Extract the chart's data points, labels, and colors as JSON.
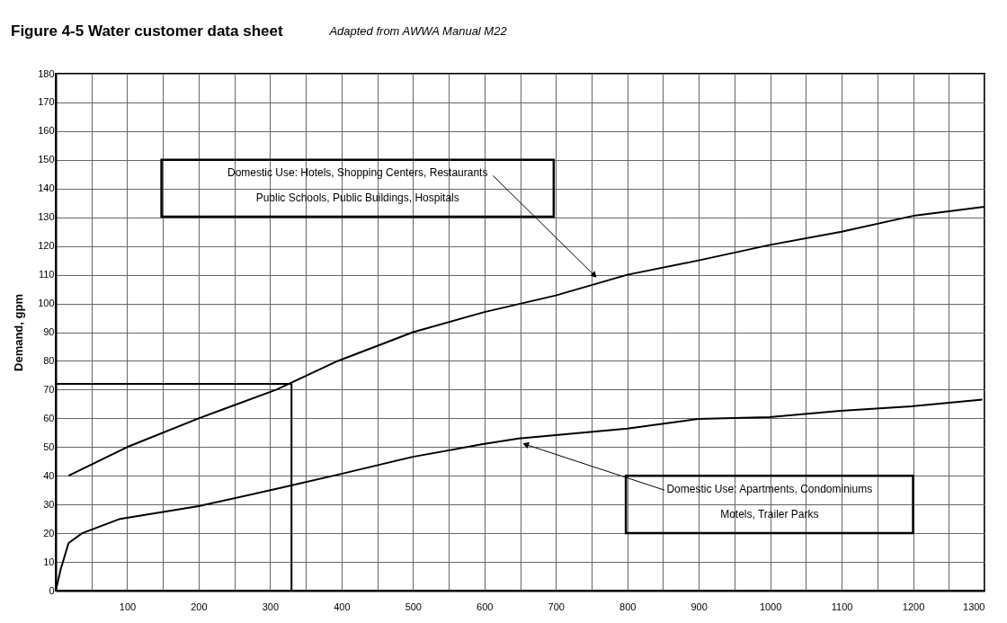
{
  "chart_data": {
    "type": "line",
    "title": "Figure 4-5  Water customer data sheet",
    "subtitle": "Adapted from AWWA Manual M22",
    "ylabel": "Demand, gpm",
    "series": [
      {
        "color": "#000000",
        "x": [
          18,
          100,
          200,
          309,
          395,
          500,
          600,
          700,
          800,
          900,
          1000,
          1100,
          1200,
          1300
        ],
        "values": [
          40,
          50,
          60,
          70,
          80,
          90,
          97,
          102.8,
          110,
          115,
          120.4,
          125,
          130.5,
          133.7
        ]
      },
      {
        "color": "#000000",
        "x": [
          0,
          7,
          18,
          37,
          90,
          200,
          313,
          397,
          500,
          598,
          648,
          800,
          899,
          999,
          1098,
          1198,
          1297
        ],
        "values": [
          0,
          7.5,
          16.6,
          20,
          25,
          29.4,
          35.7,
          40.5,
          46.6,
          51,
          53,
          56.4,
          59.8,
          60.4,
          62.6,
          64.2,
          66.5
        ]
      },
      {
        "color": "#000000",
        "x": [
          0,
          330,
          330
        ],
        "values": [
          72,
          72,
          0
        ]
      }
    ],
    "annotations": [
      {
        "text": "Domestic Use: Hotels, Shopping Centers, Restaurants\nPublic Schools, Public Buildings, Hospitals",
        "x": 753,
        "y": 110
      },
      {
        "text": "Domestic Use: Apartments, Condominiums\nMotels, Trailer Parks",
        "x": 659,
        "y": 50.8
      }
    ],
    "xlim": [
      0,
      1300
    ],
    "ylim": [
      0,
      180
    ],
    "xticks": [
      {
        "value": 50,
        "label": null
      },
      100,
      {
        "value": 150,
        "label": null
      },
      200,
      {
        "value": 250,
        "label": null
      },
      300,
      {
        "value": 350,
        "label": null
      },
      400,
      {
        "value": 450,
        "label": null
      },
      500,
      {
        "value": 550,
        "label": null
      },
      600,
      {
        "value": 650,
        "label": null
      },
      700,
      {
        "value": 750,
        "label": null
      },
      800,
      {
        "value": 850,
        "label": null
      },
      900,
      {
        "value": 950,
        "label": null
      },
      1000,
      {
        "value": 1050,
        "label": null
      },
      1100,
      {
        "value": 1150,
        "label": null
      },
      1200,
      {
        "value": 1250,
        "label": null
      },
      1300
    ],
    "yticks": [
      0,
      10,
      20,
      30,
      40,
      50,
      60,
      70,
      80,
      90,
      100,
      110,
      120,
      130,
      140,
      150,
      160,
      170,
      180
    ],
    "grid": true,
    "legend": false,
    "marker": "none",
    "line_style": "solid"
  }
}
